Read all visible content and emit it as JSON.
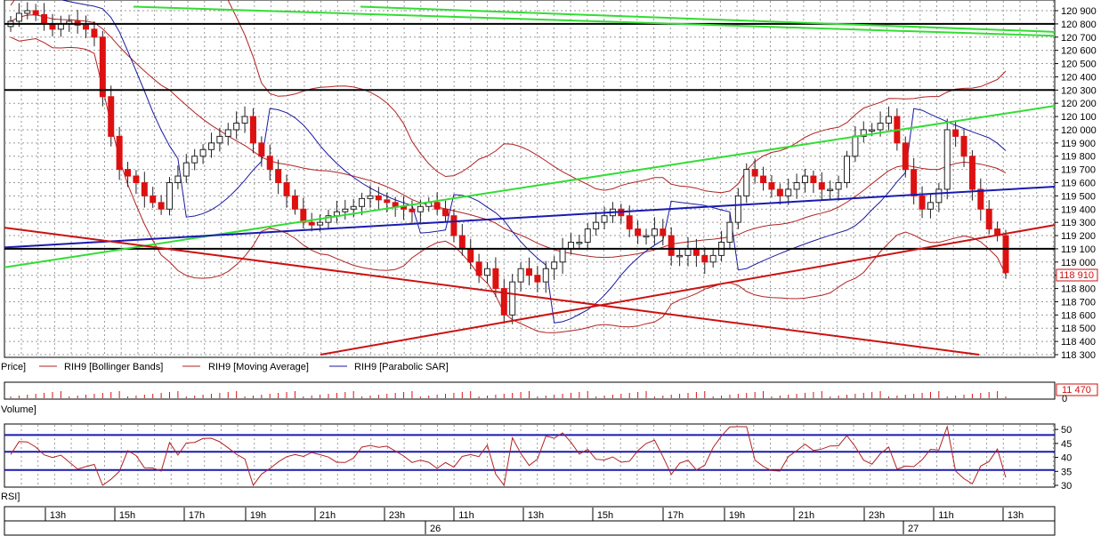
{
  "panels": {
    "price_label": "Price]",
    "volume_label": "Volume]",
    "rsi_label": "RSI]"
  },
  "legend": [
    {
      "text": "RIH9 [Bollinger Bands]",
      "color": "#b22222"
    },
    {
      "text": "RIH9 [Moving Average]",
      "color": "#b22222"
    },
    {
      "text": "RIH9 [Parabolic SAR]",
      "color": "#1a1aa0"
    }
  ],
  "price_axis": {
    "ticks": [
      "120 900",
      "120 800",
      "120 700",
      "120 600",
      "120 500",
      "120 400",
      "120 300",
      "120 200",
      "120 100",
      "120 000",
      "119 900",
      "119 800",
      "119 700",
      "119 600",
      "119 500",
      "119 400",
      "119 300",
      "119 200",
      "119 100",
      "119 000",
      "118 900",
      "118 800",
      "118 700",
      "118 600",
      "118 500",
      "118 400",
      "118 300"
    ],
    "current": "118 910"
  },
  "volume_axis": {
    "current": "11 470",
    "zero": "0"
  },
  "rsi_axis": {
    "ticks": [
      "50",
      "45",
      "40",
      "35",
      "30"
    ]
  },
  "time_axis": {
    "hours": [
      "13h",
      "15h",
      "17h",
      "19h",
      "21h",
      "23h",
      "11h",
      "13h",
      "15h",
      "17h",
      "19h",
      "21h",
      "23h",
      "11h",
      "13h"
    ],
    "days": [
      "26",
      "27"
    ]
  },
  "colors": {
    "grid": "#9a9a9a",
    "up_candle": "#ffffff",
    "down_candle": "#dd1111",
    "bollinger": "#b22222",
    "moving_average": "#b22222",
    "sar": "#1a1aa0",
    "trend_green": "#33dd33",
    "trend_red": "#cc1111",
    "trend_blue": "#1a1ab0",
    "hline": "#000000",
    "rsi_line": "#b22222",
    "rsi_levels": "#1a1ab0"
  },
  "chart_data": {
    "type": "candlestick",
    "symbol": "RIH9",
    "ylim": [
      118300,
      120900
    ],
    "horizontal_levels": [
      120800,
      120300,
      119100
    ],
    "rsi_levels": [
      48,
      42,
      35.5
    ],
    "rsi_ylim": [
      30,
      51
    ],
    "closes": [
      120820,
      120880,
      120900,
      120870,
      120800,
      120760,
      120800,
      120820,
      120790,
      120760,
      120700,
      120250,
      119950,
      119700,
      119650,
      119600,
      119500,
      119450,
      119400,
      119600,
      119650,
      119750,
      119800,
      119850,
      119900,
      119950,
      120000,
      120050,
      120100,
      119900,
      119800,
      119700,
      119600,
      119500,
      119400,
      119300,
      119280,
      119300,
      119350,
      119380,
      119400,
      119420,
      119480,
      119500,
      119470,
      119450,
      119420,
      119400,
      119380,
      119420,
      119450,
      119400,
      119350,
      119200,
      119100,
      119000,
      118900,
      118950,
      118800,
      118600,
      118850,
      118950,
      118900,
      118850,
      118950,
      119000,
      119100,
      119150,
      119150,
      119250,
      119300,
      119350,
      119400,
      119350,
      119250,
      119200,
      119200,
      119250,
      119200,
      119050,
      119050,
      119100,
      119050,
      119000,
      119050,
      119150,
      119300,
      119500,
      119700,
      119650,
      119600,
      119550,
      119500,
      119550,
      119600,
      119650,
      119600,
      119550,
      119550,
      119600,
      119800,
      119950,
      120000,
      120000,
      120050,
      120100,
      119900,
      119700,
      119500,
      119400,
      119450,
      119550,
      120000,
      119950,
      119800,
      119550,
      119400,
      119250,
      119200,
      118920
    ],
    "volume_current": 11470,
    "price_current": 118910
  }
}
